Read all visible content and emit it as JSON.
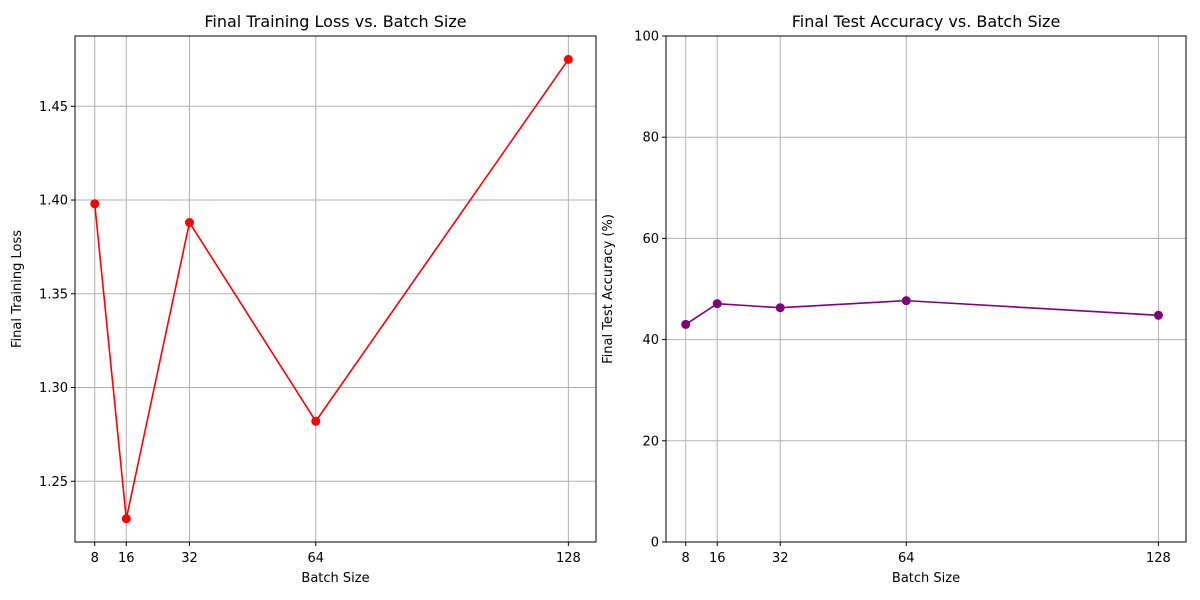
{
  "chart_data": [
    {
      "type": "line",
      "title": "Final Training Loss vs. Batch Size",
      "xlabel": "Batch Size",
      "ylabel": "Final Training Loss",
      "x": [
        8,
        16,
        32,
        64,
        128
      ],
      "xticks": [
        8,
        16,
        32,
        64,
        128
      ],
      "xlim": [
        3,
        135
      ],
      "yticks": [
        "1.25",
        "1.30",
        "1.35",
        "1.40",
        "1.45"
      ],
      "ylim": [
        1.2176,
        1.4875
      ],
      "grid": true,
      "legend": "none",
      "series": [
        {
          "values": [
            1.398,
            1.23,
            1.388,
            1.282,
            1.475
          ],
          "color": "#ff0000",
          "marker": "circle"
        }
      ]
    },
    {
      "type": "line",
      "title": "Final Test Accuracy vs. Batch Size",
      "xlabel": "Batch Size",
      "ylabel": "Final Test Accuracy (%)",
      "x": [
        8,
        16,
        32,
        64,
        128
      ],
      "xticks": [
        8,
        16,
        32,
        64,
        128
      ],
      "xlim": [
        3,
        135
      ],
      "yticks": [
        "0",
        "20",
        "40",
        "60",
        "80",
        "100"
      ],
      "ylim": [
        0,
        100
      ],
      "grid": true,
      "legend": "none",
      "series": [
        {
          "values": [
            43.0,
            47.1,
            46.3,
            47.7,
            44.8
          ],
          "color": "#800080",
          "marker": "circle"
        }
      ]
    }
  ]
}
